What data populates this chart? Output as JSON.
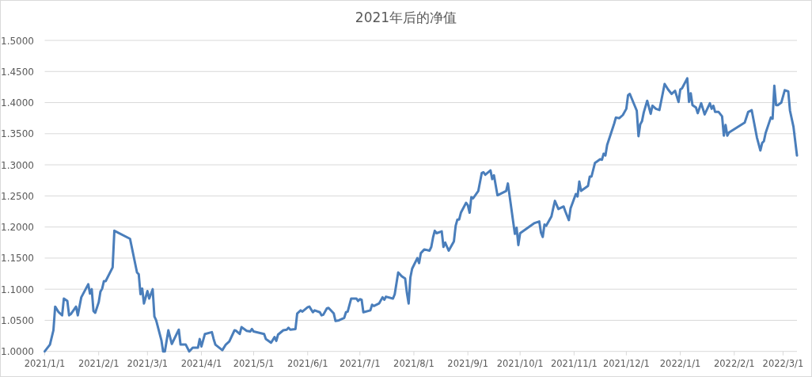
{
  "chart_data": {
    "type": "line",
    "title": "2021年后的净值",
    "grid": "y",
    "xlim": [
      "2021-01-01",
      "2022-03-09"
    ],
    "xticks": [
      {
        "value": "2021-01-01",
        "label": "2021/1/1"
      },
      {
        "value": "2021-02-01",
        "label": "2021/2/1"
      },
      {
        "value": "2021-03-01",
        "label": "2021/3/1"
      },
      {
        "value": "2021-04-01",
        "label": "2021/4/1"
      },
      {
        "value": "2021-05-01",
        "label": "2021/5/1"
      },
      {
        "value": "2021-06-01",
        "label": "2021/6/1"
      },
      {
        "value": "2021-07-01",
        "label": "2021/7/1"
      },
      {
        "value": "2021-08-01",
        "label": "2021/8/1"
      },
      {
        "value": "2021-09-01",
        "label": "2021/9/1"
      },
      {
        "value": "2021-10-01",
        "label": "2021/10/1"
      },
      {
        "value": "2021-11-01",
        "label": "2021/11/1"
      },
      {
        "value": "2021-12-01",
        "label": "2021/12/1"
      },
      {
        "value": "2022-01-01",
        "label": "2022/1/1"
      },
      {
        "value": "2022-02-01",
        "label": "2022/2/1"
      },
      {
        "value": "2022-03-01",
        "label": "2022/3/1"
      }
    ],
    "ylim": [
      1.0,
      1.5
    ],
    "yticks": [
      {
        "value": 1.0,
        "label": "1.0000"
      },
      {
        "value": 1.05,
        "label": "1.0500"
      },
      {
        "value": 1.1,
        "label": "1.1000"
      },
      {
        "value": 1.15,
        "label": "1.1500"
      },
      {
        "value": 1.2,
        "label": "1.2000"
      },
      {
        "value": 1.25,
        "label": "1.2500"
      },
      {
        "value": 1.3,
        "label": "1.3000"
      },
      {
        "value": 1.35,
        "label": "1.3500"
      },
      {
        "value": 1.4,
        "label": "1.4000"
      },
      {
        "value": 1.45,
        "label": "1.4500"
      },
      {
        "value": 1.5,
        "label": "1.5000"
      }
    ],
    "series": [
      {
        "color": "#4a7ebb",
        "x": [
          "2021-01-01",
          "2021-01-04",
          "2021-01-06",
          "2021-01-07",
          "2021-01-09",
          "2021-01-11",
          "2021-01-12",
          "2021-01-14",
          "2021-01-15",
          "2021-01-16",
          "2021-01-19",
          "2021-01-20",
          "2021-01-22",
          "2021-01-26",
          "2021-01-27",
          "2021-01-28",
          "2021-01-29",
          "2021-01-30",
          "2021-02-01",
          "2021-02-02",
          "2021-02-03",
          "2021-02-04",
          "2021-02-05",
          "2021-02-09",
          "2021-02-10",
          "2021-02-19",
          "2021-02-23",
          "2021-02-24",
          "2021-02-25",
          "2021-02-26",
          "2021-02-27",
          "2021-03-01",
          "2021-03-02",
          "2021-03-04",
          "2021-03-05",
          "2021-03-06",
          "2021-03-09",
          "2021-03-10",
          "2021-03-11",
          "2021-03-13",
          "2021-03-15",
          "2021-03-19",
          "2021-03-20",
          "2021-03-23",
          "2021-03-25",
          "2021-03-27",
          "2021-03-30",
          "2021-03-31",
          "2021-04-01",
          "2021-04-03",
          "2021-04-07",
          "2021-04-08",
          "2021-04-09",
          "2021-04-13",
          "2021-04-15",
          "2021-04-17",
          "2021-04-20",
          "2021-04-21",
          "2021-04-23",
          "2021-04-24",
          "2021-04-27",
          "2021-04-29",
          "2021-04-30",
          "2021-05-01",
          "2021-05-07",
          "2021-05-08",
          "2021-05-11",
          "2021-05-13",
          "2021-05-14",
          "2021-05-15",
          "2021-05-18",
          "2021-05-20",
          "2021-05-21",
          "2021-05-22",
          "2021-05-25",
          "2021-05-26",
          "2021-05-28",
          "2021-05-29",
          "2021-06-01",
          "2021-06-02",
          "2021-06-04",
          "2021-06-05",
          "2021-06-08",
          "2021-06-09",
          "2021-06-10",
          "2021-06-12",
          "2021-06-13",
          "2021-06-16",
          "2021-06-17",
          "2021-06-19",
          "2021-06-22",
          "2021-06-23",
          "2021-06-24",
          "2021-06-26",
          "2021-06-29",
          "2021-06-30",
          "2021-07-01",
          "2021-07-02",
          "2021-07-03",
          "2021-07-07",
          "2021-07-08",
          "2021-07-09",
          "2021-07-12",
          "2021-07-14",
          "2021-07-15",
          "2021-07-16",
          "2021-07-20",
          "2021-07-21",
          "2021-07-23",
          "2021-07-25",
          "2021-07-27",
          "2021-07-28",
          "2021-07-29",
          "2021-07-30",
          "2021-07-31",
          "2021-08-03",
          "2021-08-04",
          "2021-08-05",
          "2021-08-07",
          "2021-08-10",
          "2021-08-11",
          "2021-08-12",
          "2021-08-13",
          "2021-08-14",
          "2021-08-17",
          "2021-08-18",
          "2021-08-19",
          "2021-08-21",
          "2021-08-24",
          "2021-08-25",
          "2021-08-26",
          "2021-08-27",
          "2021-08-28",
          "2021-08-31",
          "2021-09-01",
          "2021-09-02",
          "2021-09-03",
          "2021-09-04",
          "2021-09-07",
          "2021-09-09",
          "2021-09-10",
          "2021-09-11",
          "2021-09-14",
          "2021-09-15",
          "2021-09-16",
          "2021-09-18",
          "2021-09-23",
          "2021-09-24",
          "2021-09-27",
          "2021-09-28",
          "2021-09-29",
          "2021-09-30",
          "2021-10-01",
          "2021-10-09",
          "2021-10-12",
          "2021-10-13",
          "2021-10-14",
          "2021-10-15",
          "2021-10-16",
          "2021-10-19",
          "2021-10-20",
          "2021-10-21",
          "2021-10-23",
          "2021-10-26",
          "2021-10-27",
          "2021-10-29",
          "2021-10-30",
          "2021-11-02",
          "2021-11-03",
          "2021-11-04",
          "2021-11-05",
          "2021-11-09",
          "2021-11-10",
          "2021-11-11",
          "2021-11-13",
          "2021-11-16",
          "2021-11-17",
          "2021-11-18",
          "2021-11-19",
          "2021-11-20",
          "2021-11-24",
          "2021-11-25",
          "2021-11-27",
          "2021-11-29",
          "2021-12-01",
          "2021-12-02",
          "2021-12-03",
          "2021-12-07",
          "2021-12-08",
          "2021-12-09",
          "2021-12-10",
          "2021-12-11",
          "2021-12-13",
          "2021-12-15",
          "2021-12-16",
          "2021-12-18",
          "2021-12-20",
          "2021-12-23",
          "2021-12-25",
          "2021-12-27",
          "2021-12-29",
          "2021-12-31",
          "2022-01-01",
          "2022-01-02",
          "2022-01-05",
          "2022-01-06",
          "2022-01-07",
          "2022-01-08",
          "2022-01-10",
          "2022-01-11",
          "2022-01-13",
          "2022-01-15",
          "2022-01-18",
          "2022-01-19",
          "2022-01-20",
          "2022-01-21",
          "2022-01-23",
          "2022-01-25",
          "2022-01-26",
          "2022-01-27",
          "2022-01-28",
          "2022-01-29",
          "2022-02-07",
          "2022-02-09",
          "2022-02-11",
          "2022-02-14",
          "2022-02-16",
          "2022-02-17",
          "2022-02-18",
          "2022-02-19",
          "2022-02-22",
          "2022-02-23",
          "2022-02-24",
          "2022-02-25",
          "2022-02-26",
          "2022-02-28",
          "2022-03-02",
          "2022-03-04",
          "2022-03-05",
          "2022-03-07",
          "2022-03-09"
        ],
        "values": [
          1.0,
          1.011,
          1.034,
          1.072,
          1.063,
          1.058,
          1.085,
          1.081,
          1.058,
          1.06,
          1.072,
          1.058,
          1.087,
          1.108,
          1.093,
          1.1,
          1.065,
          1.062,
          1.079,
          1.096,
          1.101,
          1.113,
          1.113,
          1.135,
          1.194,
          1.181,
          1.127,
          1.124,
          1.092,
          1.101,
          1.077,
          1.097,
          1.085,
          1.1,
          1.056,
          1.05,
          1.018,
          1.0,
          1.0,
          1.034,
          1.012,
          1.035,
          1.011,
          1.011,
          1.0,
          1.006,
          1.006,
          1.02,
          1.008,
          1.028,
          1.031,
          1.02,
          1.011,
          1.002,
          1.011,
          1.016,
          1.034,
          1.033,
          1.028,
          1.039,
          1.033,
          1.032,
          1.036,
          1.032,
          1.028,
          1.02,
          1.014,
          1.023,
          1.017,
          1.027,
          1.034,
          1.035,
          1.038,
          1.035,
          1.036,
          1.061,
          1.066,
          1.064,
          1.071,
          1.072,
          1.063,
          1.066,
          1.063,
          1.058,
          1.059,
          1.069,
          1.07,
          1.061,
          1.049,
          1.05,
          1.054,
          1.063,
          1.064,
          1.085,
          1.085,
          1.081,
          1.084,
          1.083,
          1.063,
          1.066,
          1.075,
          1.073,
          1.077,
          1.087,
          1.083,
          1.088,
          1.085,
          1.092,
          1.127,
          1.121,
          1.117,
          1.094,
          1.077,
          1.119,
          1.133,
          1.15,
          1.142,
          1.158,
          1.164,
          1.162,
          1.168,
          1.183,
          1.194,
          1.19,
          1.193,
          1.168,
          1.175,
          1.162,
          1.177,
          1.202,
          1.212,
          1.212,
          1.223,
          1.239,
          1.235,
          1.223,
          1.248,
          1.246,
          1.258,
          1.287,
          1.288,
          1.284,
          1.291,
          1.277,
          1.283,
          1.251,
          1.258,
          1.27,
          1.209,
          1.189,
          1.199,
          1.171,
          1.19,
          1.206,
          1.209,
          1.191,
          1.184,
          1.204,
          1.202,
          1.217,
          1.23,
          1.242,
          1.229,
          1.233,
          1.225,
          1.211,
          1.23,
          1.253,
          1.249,
          1.273,
          1.258,
          1.266,
          1.281,
          1.281,
          1.303,
          1.309,
          1.308,
          1.318,
          1.315,
          1.332,
          1.366,
          1.376,
          1.375,
          1.38,
          1.39,
          1.412,
          1.414,
          1.387,
          1.346,
          1.365,
          1.37,
          1.384,
          1.403,
          1.382,
          1.395,
          1.39,
          1.388,
          1.43,
          1.421,
          1.414,
          1.419,
          1.401,
          1.421,
          1.423,
          1.439,
          1.401,
          1.415,
          1.396,
          1.392,
          1.383,
          1.399,
          1.381,
          1.399,
          1.39,
          1.395,
          1.385,
          1.385,
          1.378,
          1.347,
          1.364,
          1.347,
          1.352,
          1.368,
          1.385,
          1.388,
          1.344,
          1.323,
          1.335,
          1.338,
          1.351,
          1.376,
          1.374,
          1.427,
          1.396,
          1.396,
          1.4,
          1.42,
          1.418,
          1.387,
          1.361,
          1.315
        ]
      }
    ]
  }
}
